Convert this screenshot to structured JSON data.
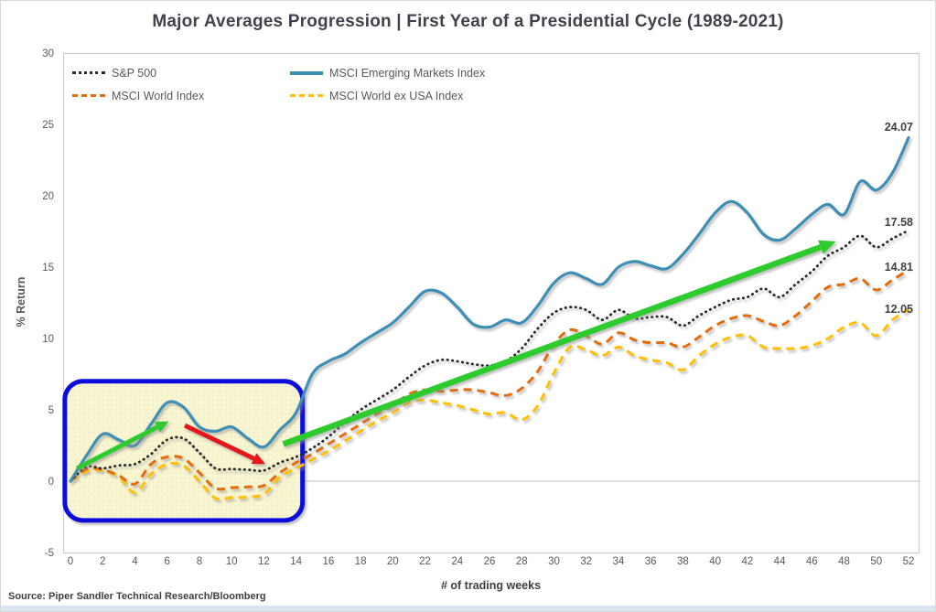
{
  "title": "Major Averages Progression | First Year of a Presidential Cycle (1989-2021)",
  "source": "Source: Piper Sandler Technical Research/Bloomberg",
  "colors": {
    "sp500": "#2b2b2b",
    "msci_world": "#e36c0a",
    "msci_em": "#3d8fb5",
    "msci_world_ex_usa": "#ffc000",
    "green_arrow": "#2ecb2e",
    "red_arrow": "#e61717",
    "highlight_box_border": "#0c0cdb",
    "highlight_box_fill": "#f8f5d2",
    "axis_text": "#595959",
    "title_text": "#40424c"
  },
  "chart_data": {
    "type": "line",
    "title": "Major Averages Progression | First Year of a Presidential Cycle (1989-2021)",
    "xlabel": "# of trading weeks",
    "ylabel": "% Return",
    "xlim": [
      0,
      52
    ],
    "ylim": [
      -5,
      30
    ],
    "x_ticks": [
      0,
      2,
      4,
      6,
      8,
      10,
      12,
      14,
      16,
      18,
      20,
      22,
      24,
      26,
      28,
      30,
      32,
      34,
      36,
      38,
      40,
      42,
      44,
      46,
      48,
      50,
      52
    ],
    "y_ticks": [
      30,
      25,
      20,
      15,
      10,
      5,
      0,
      -5
    ],
    "grid": "zero-line-only",
    "legend_position": "inside-top-left",
    "x_unit": "trading week index 0-52",
    "series": [
      {
        "name": "S&P 500",
        "style": "dotted",
        "color": "#2b2b2b",
        "end_label": "17.58",
        "values": [
          0,
          1.0,
          0.9,
          1.1,
          1.2,
          1.9,
          2.9,
          3.0,
          2.0,
          0.9,
          0.85,
          0.8,
          0.75,
          1.3,
          1.7,
          2.3,
          3.1,
          4.1,
          5.0,
          5.7,
          6.4,
          7.3,
          8.1,
          8.5,
          8.4,
          8.2,
          8.1,
          8.4,
          9.3,
          10.7,
          11.8,
          12.2,
          12.0,
          11.3,
          12.0,
          11.4,
          11.5,
          11.5,
          10.9,
          11.6,
          12.2,
          12.7,
          12.9,
          13.5,
          12.9,
          13.8,
          14.7,
          15.8,
          16.4,
          17.2,
          16.4,
          17.0,
          17.58
        ]
      },
      {
        "name": "MSCI World Index",
        "style": "dashed",
        "color": "#e36c0a",
        "end_label": "14.81",
        "values": [
          0,
          0.85,
          0.8,
          0.4,
          -0.2,
          1.2,
          1.7,
          1.6,
          0.6,
          -0.5,
          -0.45,
          -0.4,
          -0.3,
          0.6,
          1.3,
          1.9,
          2.6,
          3.3,
          4.0,
          4.7,
          5.3,
          6.1,
          6.4,
          6.3,
          6.4,
          6.4,
          6.2,
          6.0,
          6.5,
          7.7,
          9.6,
          10.6,
          10.2,
          9.6,
          10.4,
          9.9,
          9.7,
          9.7,
          9.4,
          10.1,
          10.9,
          11.4,
          11.6,
          11.2,
          10.9,
          11.6,
          12.6,
          13.6,
          13.8,
          14.2,
          13.4,
          14.1,
          14.81
        ]
      },
      {
        "name": "MSCI Emerging Markets Index",
        "style": "solid",
        "color": "#3d8fb5",
        "end_label": "24.07",
        "values": [
          0,
          1.8,
          3.3,
          2.9,
          2.5,
          4.0,
          5.5,
          5.2,
          3.8,
          3.5,
          3.8,
          3.0,
          2.4,
          3.6,
          4.8,
          7.5,
          8.4,
          8.9,
          9.7,
          10.4,
          11.1,
          12.2,
          13.3,
          13.2,
          12.2,
          11.0,
          10.8,
          11.3,
          11.1,
          12.3,
          13.9,
          14.6,
          14.2,
          13.8,
          15.0,
          15.4,
          15.1,
          14.9,
          15.9,
          17.3,
          18.8,
          19.6,
          18.8,
          17.3,
          16.9,
          17.7,
          18.7,
          19.4,
          18.7,
          21.0,
          20.4,
          21.6,
          24.07
        ]
      },
      {
        "name": "MSCI World ex USA Index",
        "style": "dashed",
        "color": "#ffc000",
        "end_label": "12.05",
        "values": [
          0,
          0.7,
          0.75,
          0.3,
          -0.8,
          0.5,
          1.2,
          1.1,
          0.0,
          -1.2,
          -1.15,
          -1.1,
          -0.9,
          0.3,
          0.9,
          1.5,
          2.1,
          2.8,
          3.5,
          4.2,
          4.8,
          5.5,
          5.7,
          5.5,
          5.3,
          5.0,
          4.7,
          4.8,
          4.3,
          5.3,
          7.6,
          9.4,
          9.2,
          8.8,
          9.4,
          8.8,
          8.5,
          8.3,
          7.8,
          8.8,
          9.6,
          10.1,
          10.2,
          9.4,
          9.3,
          9.3,
          9.5,
          10.0,
          10.8,
          11.1,
          10.2,
          11.3,
          12.05
        ]
      }
    ],
    "annotations": {
      "highlight_box": {
        "week_start": -0.35,
        "week_end": 14.4,
        "value_bottom": -2.75,
        "value_top": 7.0
      },
      "arrows": [
        {
          "id": "green-up-arrow-early",
          "color": "#2ecb2e",
          "from_week": 0.4,
          "from_value": 0.9,
          "to_week": 6.1,
          "to_value": 4.2
        },
        {
          "id": "red-down-arrow",
          "color": "#e61717",
          "from_week": 7.1,
          "from_value": 3.9,
          "to_week": 12.1,
          "to_value": 1.2
        },
        {
          "id": "green-up-arrow-long",
          "color": "#2ecb2e",
          "from_week": 13.2,
          "from_value": 2.6,
          "to_week": 47.5,
          "to_value": 16.8
        }
      ]
    }
  }
}
